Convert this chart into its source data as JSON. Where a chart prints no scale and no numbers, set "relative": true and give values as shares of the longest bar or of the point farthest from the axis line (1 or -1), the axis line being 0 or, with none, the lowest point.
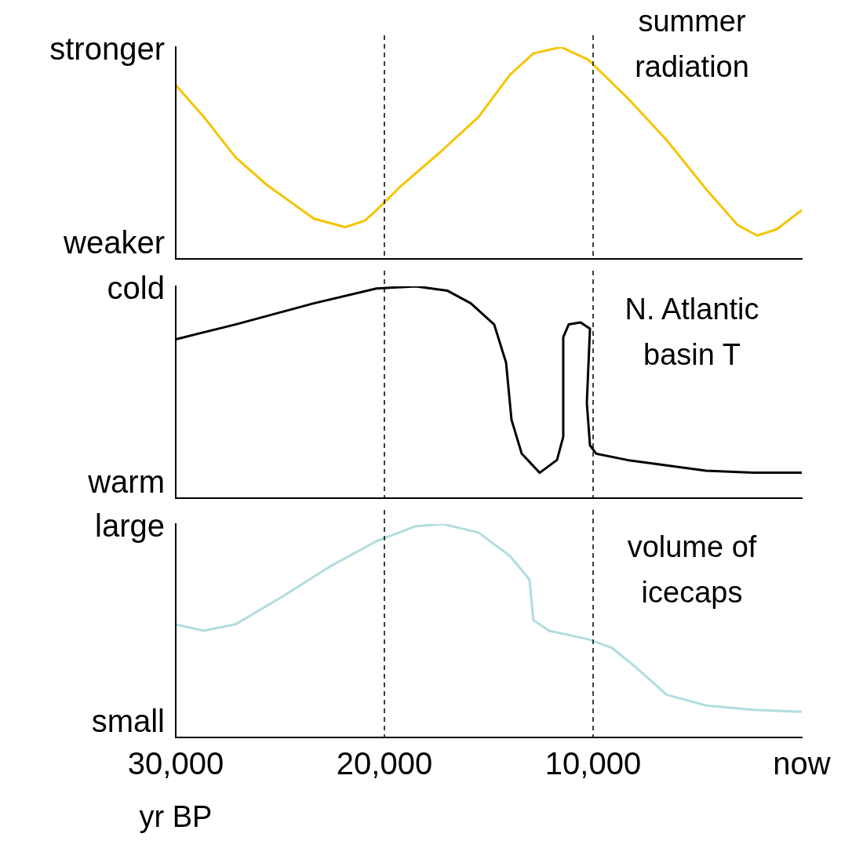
{
  "chart_data": [
    {
      "type": "line",
      "relative": true,
      "xlim": [
        30000,
        0
      ],
      "tick_labels": false,
      "marker": "none",
      "grid": false,
      "annotations": [
        "stronger",
        "weaker"
      ],
      "ref_lines": [
        {
          "axis": "x",
          "value": 20000,
          "color": "#000000",
          "line_style": "dashed"
        },
        {
          "axis": "x",
          "value": 10000,
          "color": "#000000",
          "line_style": "dashed"
        }
      ],
      "series": [
        {
          "name": "summer radiation",
          "color": "#f5c400",
          "x": [
            30000,
            28650,
            27140,
            25640,
            23380,
            21880,
            20940,
            20380,
            19250,
            17370,
            15490,
            13980,
            12860,
            11540,
            10230,
            8350,
            6470,
            4590,
            3080,
            2140,
            1200,
            0
          ],
          "values": [
            0.82,
            0.67,
            0.48,
            0.35,
            0.19,
            0.15,
            0.18,
            0.23,
            0.34,
            0.5,
            0.67,
            0.87,
            0.97,
            1.0,
            0.94,
            0.76,
            0.56,
            0.33,
            0.16,
            0.11,
            0.14,
            0.23
          ]
        }
      ]
    },
    {
      "type": "line",
      "relative": true,
      "xlim": [
        30000,
        0
      ],
      "tick_labels": false,
      "marker": "none",
      "grid": false,
      "annotations": [
        "cold",
        "warm"
      ],
      "ref_lines": [
        {
          "axis": "x",
          "value": 20000,
          "color": "#000000",
          "line_style": "dashed"
        },
        {
          "axis": "x",
          "value": 10000,
          "color": "#000000",
          "line_style": "dashed"
        }
      ],
      "series": [
        {
          "name": "N. Atlantic basin T",
          "color": "#000000",
          "x": [
            30000,
            27140,
            23380,
            20380,
            18500,
            16990,
            15860,
            14740,
            14170,
            13910,
            13420,
            12560,
            11730,
            11430,
            11430,
            11170,
            10600,
            10150,
            10300,
            10150,
            9850,
            8350,
            4590,
            2330,
            0
          ],
          "values": [
            0.75,
            0.82,
            0.92,
            0.99,
            1.0,
            0.98,
            0.92,
            0.82,
            0.64,
            0.37,
            0.21,
            0.12,
            0.18,
            0.29,
            0.76,
            0.82,
            0.83,
            0.8,
            0.45,
            0.25,
            0.21,
            0.18,
            0.13,
            0.12,
            0.12
          ]
        }
      ]
    },
    {
      "type": "line",
      "relative": true,
      "xlim": [
        30000,
        0
      ],
      "xticks": [
        {
          "value": 30000,
          "label": "30,000"
        },
        {
          "value": 20000,
          "label": "20,000"
        },
        {
          "value": 10000,
          "label": "10,000"
        },
        {
          "value": 0,
          "label": "now"
        }
      ],
      "xlabel": "yr BP",
      "tick_labels": "x",
      "marker": "none",
      "grid": false,
      "annotations": [
        "large",
        "small"
      ],
      "ref_lines": [
        {
          "axis": "x",
          "value": 20000,
          "color": "#000000",
          "line_style": "dashed"
        },
        {
          "axis": "x",
          "value": 10000,
          "color": "#000000",
          "line_style": "dashed"
        }
      ],
      "series": [
        {
          "name": "volume of icecaps",
          "color": "#b0dde0",
          "x": [
            30000,
            28650,
            27140,
            24890,
            22630,
            20380,
            18500,
            17180,
            15490,
            13980,
            13050,
            12860,
            12110,
            10230,
            9100,
            7970,
            6470,
            4590,
            2330,
            0
          ],
          "values": [
            0.53,
            0.5,
            0.53,
            0.66,
            0.8,
            0.92,
            0.99,
            1.0,
            0.96,
            0.85,
            0.74,
            0.55,
            0.5,
            0.46,
            0.42,
            0.33,
            0.2,
            0.15,
            0.13,
            0.12
          ]
        }
      ]
    }
  ]
}
